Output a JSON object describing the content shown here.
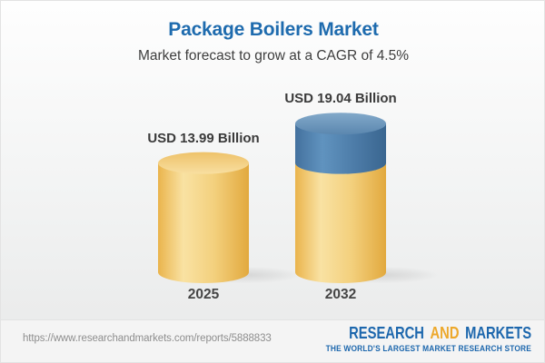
{
  "header": {
    "title": "Package Boilers Market",
    "subtitle": "Market forecast to grow at a CAGR of 4.5%"
  },
  "chart_data": {
    "type": "bar",
    "subtype": "3d-cylinder-infographic",
    "categories": [
      "2025",
      "2032"
    ],
    "values": [
      13.99,
      19.04
    ],
    "unit": "USD Billion",
    "value_labels": [
      "USD 13.99 Billion",
      "USD 19.04 Billion"
    ],
    "title": "Package Boilers Market",
    "subtitle": "Market forecast to grow at a CAGR of 4.5%",
    "cagr_percent": 4.5,
    "legend": false,
    "axes_visible": false,
    "colors": {
      "base_segment_gold": "#f0c468",
      "growth_segment_blue": "#4d7ca8",
      "label_text": "#3a3a3a"
    }
  },
  "footer": {
    "url": "https://www.researchandmarkets.com/reports/5888833",
    "logo": {
      "word1": "RESEARCH",
      "word2": "AND",
      "word3": "MARKETS",
      "tagline": "THE WORLD'S LARGEST MARKET RESEARCH STORE"
    }
  },
  "colors": {
    "title_blue": "#1e6bae",
    "logo_blue": "#1d67ad",
    "logo_gold": "#eda82b",
    "url_gray": "#8e8e8e"
  }
}
